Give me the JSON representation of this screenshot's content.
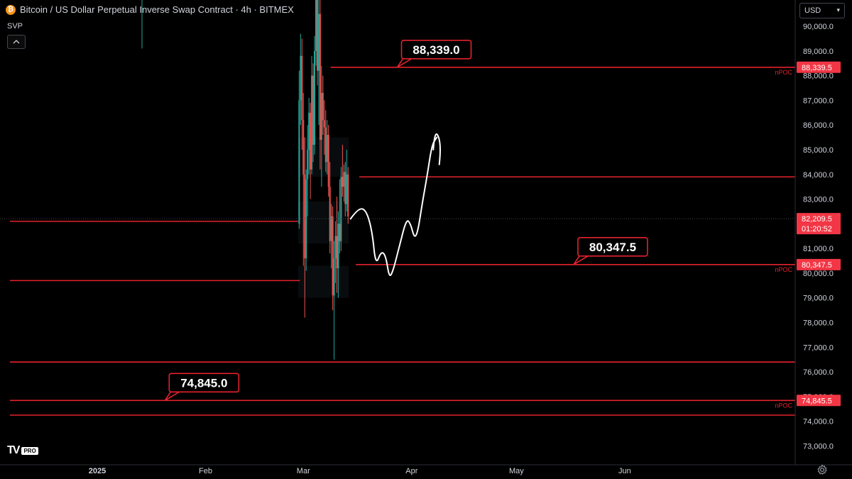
{
  "header": {
    "symbol_badge": "₿",
    "title": "Bitcoin / US Dollar Perpetual Inverse Swap Contract · 4h · BITMEX",
    "indicator": "SVP",
    "collapse_icon": "chevron-up-icon"
  },
  "currency_select": {
    "value": "USD"
  },
  "branding": {
    "logo_text": "TV",
    "pro_label": "PRO"
  },
  "colors": {
    "level_line": "#e3222d",
    "label_border": "#e3222d",
    "label_bg": "#000000",
    "axis_label_bg": "#f23645",
    "candle_up": "#26a69a",
    "candle_down": "#ef5350",
    "background": "#000000",
    "axis_text": "#d1d4dc"
  },
  "chart_data": {
    "type": "candlestick",
    "y_axis": {
      "min": 72500,
      "max": 90500,
      "ticks": [
        "73,000.0",
        "74,000.0",
        "75,000.0",
        "76,000.0",
        "77,000.0",
        "78,000.0",
        "79,000.0",
        "80,000.0",
        "81,000.0",
        "82,000.0",
        "83,000.0",
        "84,000.0",
        "85,000.0",
        "86,000.0",
        "87,000.0",
        "88,000.0",
        "89,000.0",
        "90,000.0"
      ]
    },
    "x_axis": {
      "labels": [
        {
          "text": "2025",
          "bold": true,
          "day": 0
        },
        {
          "text": "Feb",
          "day": 31
        },
        {
          "text": "Mar",
          "day": 59
        },
        {
          "text": "Apr",
          "day": 90
        },
        {
          "text": "May",
          "day": 120
        },
        {
          "text": "Jun",
          "day": 151
        }
      ],
      "day_min": -25,
      "day_max": 193
    },
    "levels": [
      {
        "price": 88339.5,
        "start_day": 66.8,
        "tag": "88,339.0",
        "tag_day": 87.5,
        "axis_label": "88,339.5",
        "npoc": "nPOC"
      },
      {
        "price": 83900,
        "start_day": 75
      },
      {
        "price": 82100,
        "start_day": -25,
        "end_day": 57.5
      },
      {
        "price": 80347.5,
        "start_day": 74,
        "tag": "80,347.5",
        "tag_day": 138,
        "axis_label": "80,347.5",
        "npoc": "nPOC"
      },
      {
        "price": 79700,
        "start_day": -25,
        "end_day": 58
      },
      {
        "price": 76400,
        "start_day": -25
      },
      {
        "price": 74845.5,
        "start_day": -25,
        "tag": "74,845.0",
        "tag_day": 21,
        "axis_label": "74,845.5",
        "npoc": "nPOC"
      },
      {
        "price": 74250,
        "start_day": -25
      }
    ],
    "current_price": {
      "price": 82209.5,
      "label": "82,209.5",
      "countdown": "01:20:52"
    },
    "candles": [
      {
        "day": 57.8,
        "o": 82000,
        "h": 88200,
        "l": 81800,
        "c": 87000
      },
      {
        "day": 58.2,
        "o": 87000,
        "h": 89700,
        "l": 86000,
        "c": 88800
      },
      {
        "day": 58.6,
        "o": 88800,
        "h": 89500,
        "l": 85000,
        "c": 86200
      },
      {
        "day": 59.0,
        "o": 86200,
        "h": 87300,
        "l": 80300,
        "c": 84000
      },
      {
        "day": 59.4,
        "o": 84000,
        "h": 85500,
        "l": 78200,
        "c": 80600
      },
      {
        "day": 59.8,
        "o": 80600,
        "h": 84200,
        "l": 80100,
        "c": 83800
      },
      {
        "day": 60.2,
        "o": 83800,
        "h": 86000,
        "l": 82300,
        "c": 85000
      },
      {
        "day": 60.6,
        "o": 85000,
        "h": 87100,
        "l": 84000,
        "c": 86500
      },
      {
        "day": 61.0,
        "o": 86500,
        "h": 86900,
        "l": 83000,
        "c": 84200
      },
      {
        "day": 61.4,
        "o": 84200,
        "h": 88800,
        "l": 84000,
        "c": 88000
      },
      {
        "day": 61.8,
        "o": 88000,
        "h": 88500,
        "l": 84500,
        "c": 85200
      },
      {
        "day": 62.2,
        "o": 85200,
        "h": 89600,
        "l": 84800,
        "c": 89000
      },
      {
        "day": 62.6,
        "o": 89000,
        "h": 92600,
        "l": 88400,
        "c": 91500
      },
      {
        "day": 63.0,
        "o": 91500,
        "h": 93000,
        "l": 87600,
        "c": 88200
      },
      {
        "day": 63.4,
        "o": 88200,
        "h": 92000,
        "l": 86000,
        "c": 90500
      },
      {
        "day": 63.8,
        "o": 90500,
        "h": 91500,
        "l": 84200,
        "c": 85400
      },
      {
        "day": 64.2,
        "o": 85400,
        "h": 88400,
        "l": 83500,
        "c": 87300
      },
      {
        "day": 64.6,
        "o": 87300,
        "h": 88000,
        "l": 85600,
        "c": 86200
      },
      {
        "day": 65.0,
        "o": 86200,
        "h": 87000,
        "l": 84800,
        "c": 85900
      },
      {
        "day": 65.4,
        "o": 85900,
        "h": 86600,
        "l": 84100,
        "c": 84500
      },
      {
        "day": 65.8,
        "o": 84500,
        "h": 86200,
        "l": 84000,
        "c": 85600
      },
      {
        "day": 66.2,
        "o": 85600,
        "h": 86000,
        "l": 83100,
        "c": 83500
      },
      {
        "day": 66.6,
        "o": 83500,
        "h": 84500,
        "l": 80800,
        "c": 81300
      },
      {
        "day": 67.0,
        "o": 81300,
        "h": 82800,
        "l": 80200,
        "c": 82300
      },
      {
        "day": 67.4,
        "o": 82300,
        "h": 82700,
        "l": 78500,
        "c": 79100
      },
      {
        "day": 67.8,
        "o": 79100,
        "h": 81300,
        "l": 76500,
        "c": 80600
      },
      {
        "day": 68.2,
        "o": 80600,
        "h": 82100,
        "l": 79600,
        "c": 81500
      },
      {
        "day": 68.6,
        "o": 81500,
        "h": 83100,
        "l": 79200,
        "c": 80200
      },
      {
        "day": 69.0,
        "o": 80200,
        "h": 82500,
        "l": 79000,
        "c": 82000
      },
      {
        "day": 69.4,
        "o": 82000,
        "h": 83800,
        "l": 80800,
        "c": 81300
      },
      {
        "day": 69.8,
        "o": 81300,
        "h": 84300,
        "l": 80900,
        "c": 83900
      },
      {
        "day": 70.2,
        "o": 83900,
        "h": 85200,
        "l": 83100,
        "c": 83500
      },
      {
        "day": 70.6,
        "o": 83500,
        "h": 84400,
        "l": 82900,
        "c": 84100
      },
      {
        "day": 71.0,
        "o": 84100,
        "h": 84500,
        "l": 82300,
        "c": 82800
      },
      {
        "day": 71.4,
        "o": 82800,
        "h": 85000,
        "l": 82500,
        "c": 84000
      },
      {
        "day": 71.8,
        "o": 84000,
        "h": 84300,
        "l": 82000,
        "c": 82300
      }
    ],
    "projection": [
      [
        72.5,
        82200
      ],
      [
        74.8,
        82650
      ],
      [
        77,
        82550
      ],
      [
        78.7,
        81700
      ],
      [
        79.7,
        80300
      ],
      [
        81.3,
        80900
      ],
      [
        82.6,
        80700
      ],
      [
        83.6,
        79800
      ],
      [
        84.7,
        80100
      ],
      [
        86.5,
        81100
      ],
      [
        88.5,
        82200
      ],
      [
        89.7,
        82000
      ],
      [
        90.8,
        81400
      ],
      [
        91.8,
        81700
      ],
      [
        93,
        82800
      ],
      [
        94.5,
        84000
      ],
      [
        95.8,
        85200
      ],
      [
        97.2,
        85500
      ]
    ],
    "arrowhead": [
      [
        96.2,
        85000
      ],
      [
        97.4,
        85600
      ],
      [
        97.9,
        84400
      ]
    ]
  }
}
